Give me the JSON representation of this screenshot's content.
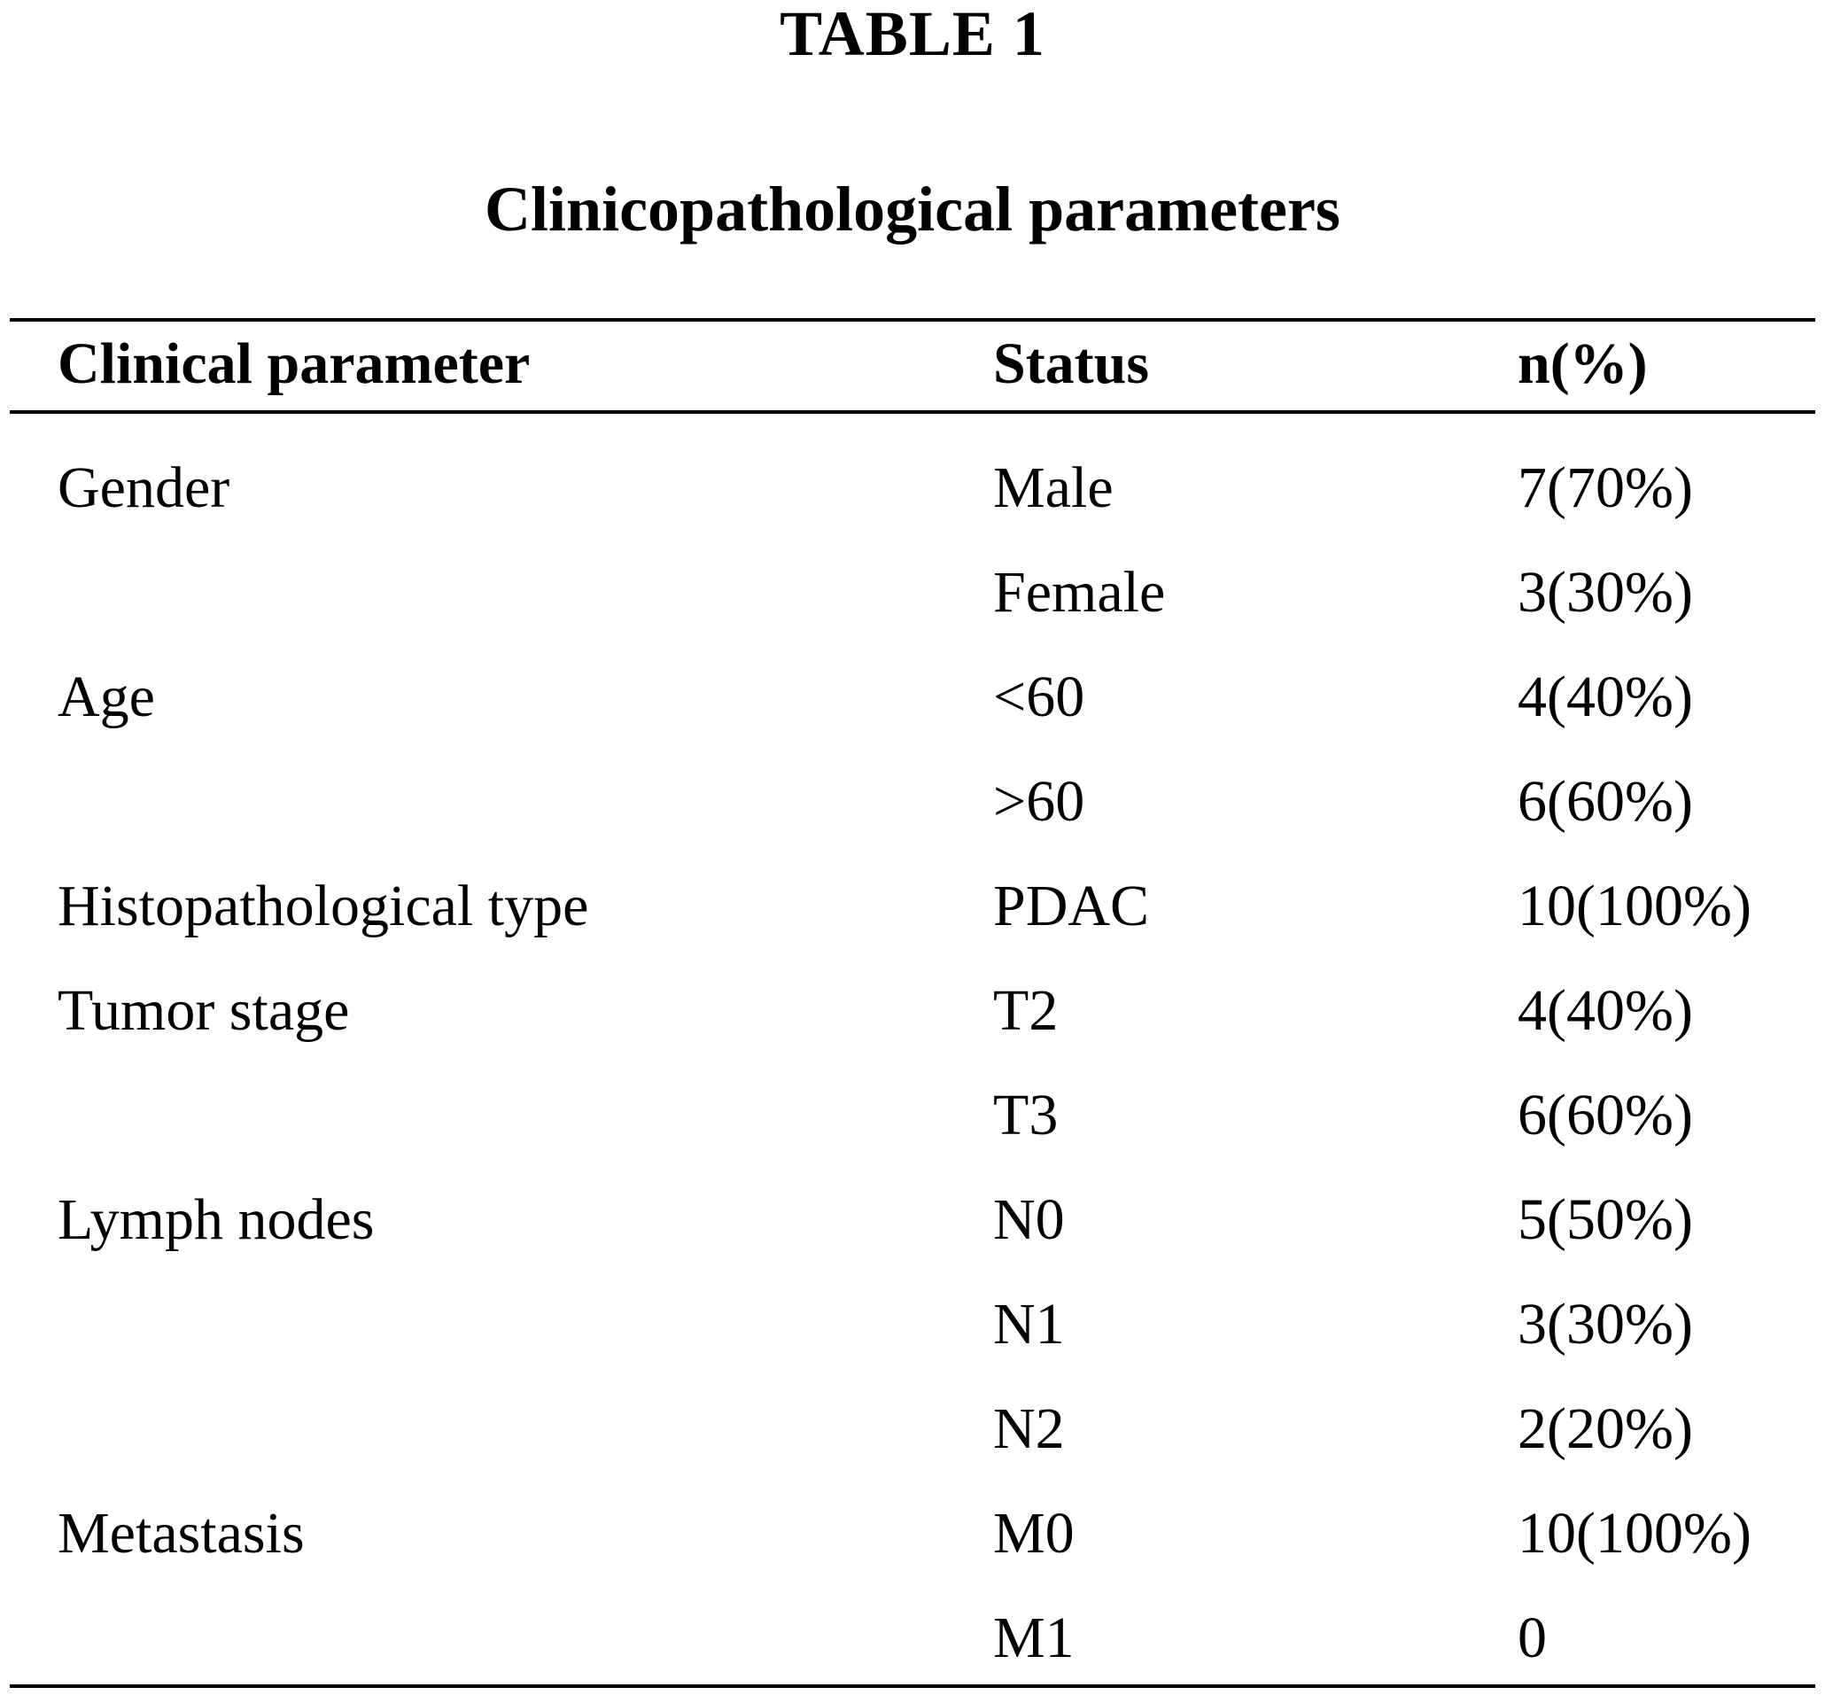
{
  "table": {
    "label": "TABLE 1",
    "title": "Clinicopathological parameters",
    "headers": [
      "Clinical parameter",
      "Status",
      "n(%)"
    ],
    "rows": [
      [
        "Gender",
        "Male",
        "7(70%)"
      ],
      [
        "",
        "Female",
        "3(30%)"
      ],
      [
        "Age",
        "<60",
        "4(40%)"
      ],
      [
        "",
        ">60",
        "6(60%)"
      ],
      [
        "Histopathological type",
        "PDAC",
        "10(100%)"
      ],
      [
        "Tumor stage",
        "T2",
        "4(40%)"
      ],
      [
        "",
        "T3",
        "6(60%)"
      ],
      [
        "Lymph nodes",
        "N0",
        "5(50%)"
      ],
      [
        "",
        "N1",
        "3(30%)"
      ],
      [
        "",
        "N2",
        "2(20%)"
      ],
      [
        "Metastasis",
        "M0",
        "10(100%)"
      ],
      [
        "",
        "M1",
        "0"
      ]
    ]
  }
}
